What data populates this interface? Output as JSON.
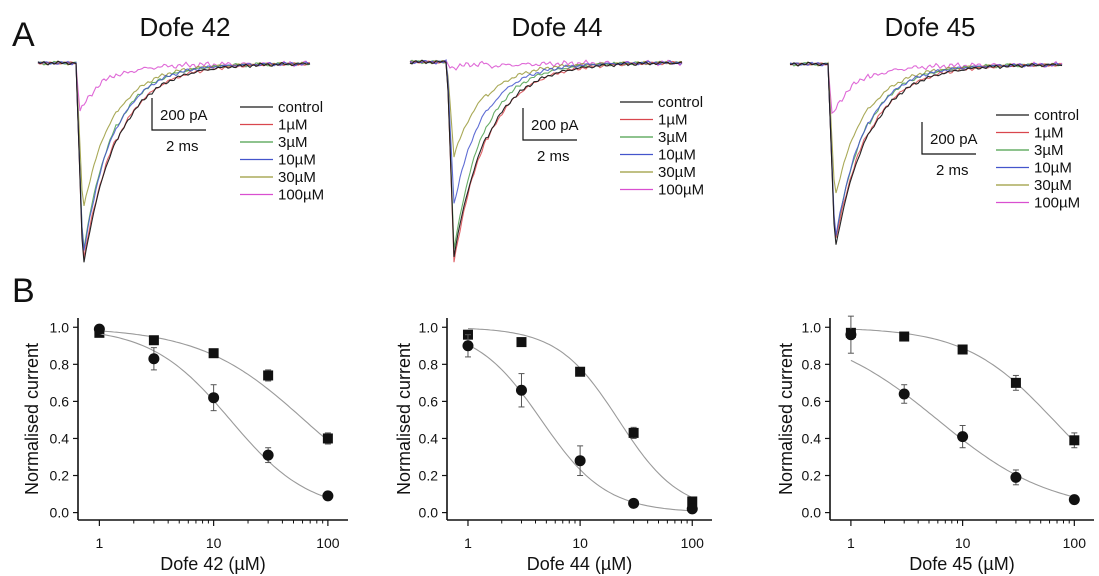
{
  "panel_letters": {
    "a": "A",
    "b": "B"
  },
  "colors": {
    "control": "#1a1a1a",
    "1µM": "#d9464e",
    "3µM": "#4b9f4b",
    "10µM": "#4455cc",
    "30µM": "#9a9a3a",
    "100µM": "#d94fd0",
    "fit_line": "#9a9a9a",
    "marker": "#111111"
  },
  "traces": [
    {
      "title": "Dofe 42",
      "legend": [
        "control",
        "1µM",
        "3µM",
        "10µM",
        "30µM",
        "100µM"
      ],
      "scale_bar": {
        "current_label": "200 pA",
        "time_label": "2 ms"
      },
      "relative_peak": {
        "control": 1.0,
        "1µM": 0.98,
        "3µM": 0.93,
        "10µM": 0.95,
        "30µM": 0.72,
        "100µM": 0.24
      }
    },
    {
      "title": "Dofe 44",
      "legend": [
        "control",
        "1µM",
        "3µM",
        "10µM",
        "30µM",
        "100µM"
      ],
      "scale_bar": {
        "current_label": "200 pA",
        "time_label": "2 ms"
      },
      "relative_peak": {
        "control": 0.97,
        "1µM": 1.0,
        "3µM": 0.94,
        "10µM": 0.71,
        "30µM": 0.47,
        "100µM": 0.03
      }
    },
    {
      "title": "Dofe 45",
      "legend": [
        "control",
        "1µM",
        "3µM",
        "10µM",
        "30µM",
        "100µM"
      ],
      "scale_bar": {
        "current_label": "200 pA",
        "time_label": "2 ms"
      },
      "relative_peak": {
        "control": 1.0,
        "1µM": 0.97,
        "3µM": 0.96,
        "10µM": 0.95,
        "30µM": 0.72,
        "100µM": 0.28
      }
    }
  ],
  "chart_data": [
    {
      "type": "scatter",
      "title": "",
      "xlabel": "Dofe 42 (µM)",
      "ylabel": "Normalised current",
      "xscale": "log",
      "xlim": [
        0.65,
        150
      ],
      "ylim": [
        -0.04,
        1.05
      ],
      "x_ticks": [
        1,
        10,
        100
      ],
      "x_tick_labels": [
        "1",
        "10",
        "100"
      ],
      "y_ticks": [
        0,
        0.2,
        0.4,
        0.6,
        0.8,
        1.0
      ],
      "y_tick_labels": [
        "0.0",
        "0.2",
        "0.4",
        "0.6",
        "0.8",
        "1.0"
      ],
      "grid": false,
      "series": [
        {
          "marker": "square",
          "x": [
            1,
            3,
            10,
            30,
            100
          ],
          "y": [
            0.97,
            0.93,
            0.86,
            0.74,
            0.4
          ],
          "err": [
            0.01,
            0.01,
            0.02,
            0.03,
            0.03
          ],
          "fit": {
            "ic50": 62,
            "hill": 0.95
          }
        },
        {
          "marker": "circle",
          "x": [
            1,
            3,
            10,
            30,
            100
          ],
          "y": [
            0.99,
            0.83,
            0.62,
            0.31,
            0.09
          ],
          "err": [
            0.02,
            0.06,
            0.07,
            0.04,
            0.01
          ],
          "fit": {
            "ic50": 14,
            "hill": 1.25
          }
        }
      ]
    },
    {
      "type": "scatter",
      "title": "",
      "xlabel": "Dofe 44 (µM)",
      "ylabel": "Normalised current",
      "xscale": "log",
      "xlim": [
        0.65,
        150
      ],
      "ylim": [
        -0.04,
        1.05
      ],
      "x_ticks": [
        1,
        10,
        100
      ],
      "x_tick_labels": [
        "1",
        "10",
        "100"
      ],
      "y_ticks": [
        0,
        0.2,
        0.4,
        0.6,
        0.8,
        1.0
      ],
      "y_tick_labels": [
        "0.0",
        "0.2",
        "0.4",
        "0.6",
        "0.8",
        "1.0"
      ],
      "grid": false,
      "series": [
        {
          "marker": "square",
          "x": [
            1,
            3,
            10,
            30,
            100
          ],
          "y": [
            0.96,
            0.92,
            0.76,
            0.43,
            0.06
          ],
          "err": [
            0.01,
            0.01,
            0.02,
            0.03,
            0.02
          ],
          "fit": {
            "ic50": 22,
            "hill": 1.6
          }
        },
        {
          "marker": "circle",
          "x": [
            1,
            3,
            10,
            30,
            100
          ],
          "y": [
            0.9,
            0.66,
            0.28,
            0.05,
            0.02
          ],
          "err": [
            0.06,
            0.09,
            0.08,
            0.01,
            0.01
          ],
          "fit": {
            "ic50": 4.5,
            "hill": 1.5
          }
        }
      ]
    },
    {
      "type": "scatter",
      "title": "",
      "xlabel": "Dofe 45 (µM)",
      "ylabel": "Normalised current",
      "xscale": "log",
      "xlim": [
        0.65,
        150
      ],
      "ylim": [
        -0.04,
        1.05
      ],
      "x_ticks": [
        1,
        10,
        100
      ],
      "x_tick_labels": [
        "1",
        "10",
        "100"
      ],
      "y_ticks": [
        0,
        0.2,
        0.4,
        0.6,
        0.8,
        1.0
      ],
      "y_tick_labels": [
        "0.0",
        "0.2",
        "0.4",
        "0.6",
        "0.8",
        "1.0"
      ],
      "grid": false,
      "series": [
        {
          "marker": "square",
          "x": [
            1,
            3,
            10,
            30,
            100
          ],
          "y": [
            0.97,
            0.95,
            0.88,
            0.7,
            0.39
          ],
          "err": [
            0.02,
            0.01,
            0.02,
            0.04,
            0.04
          ],
          "fit": {
            "ic50": 65,
            "hill": 1.1
          }
        },
        {
          "marker": "circle",
          "x": [
            1,
            3,
            10,
            30,
            100
          ],
          "y": [
            0.96,
            0.64,
            0.41,
            0.19,
            0.07
          ],
          "err": [
            0.1,
            0.05,
            0.06,
            0.04,
            0.01
          ],
          "fit": {
            "ic50": 6,
            "hill": 0.85
          }
        }
      ]
    }
  ]
}
